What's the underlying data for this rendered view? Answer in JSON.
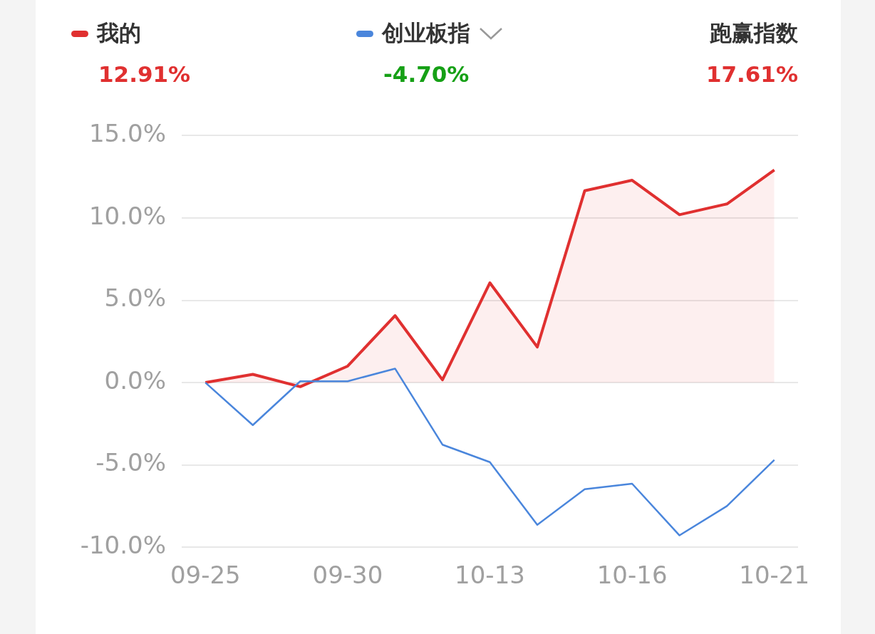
{
  "chart_data": {
    "type": "line",
    "categories": [
      "09-25",
      null,
      null,
      "09-30",
      null,
      null,
      "10-13",
      null,
      null,
      "10-16",
      null,
      null,
      "10-21"
    ],
    "series": [
      {
        "name": "我的",
        "type": "area",
        "color": "#e03030",
        "values": [
          0.0,
          0.5,
          -0.25,
          1.0,
          4.07,
          0.17,
          6.06,
          2.16,
          11.65,
          12.29,
          10.2,
          10.85,
          12.91
        ]
      },
      {
        "name": "创业板指",
        "color": "#4a86dc",
        "values": [
          0.0,
          -2.58,
          0.08,
          0.08,
          0.85,
          -3.77,
          -4.83,
          -8.64,
          -6.48,
          -6.14,
          -9.28,
          -7.5,
          -4.7
        ]
      }
    ],
    "ylim": [
      -10,
      15
    ],
    "yticks": [
      {
        "value": -10,
        "label": "-10.0%"
      },
      {
        "value": -5,
        "label": "-5.0%"
      },
      {
        "value": 0,
        "label": "0.0%"
      },
      {
        "value": 5,
        "label": "5.0%"
      },
      {
        "value": 10,
        "label": "10.0%"
      },
      {
        "value": 15,
        "label": "15.0%"
      }
    ],
    "grid": "y",
    "legend": "top",
    "annotations": [
      "12.91%",
      "-4.70%",
      "跑赢指数",
      "17.61%"
    ]
  }
}
